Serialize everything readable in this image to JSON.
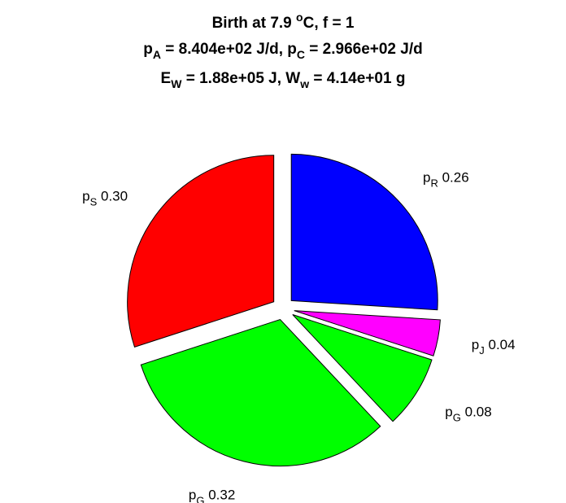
{
  "chart_data": {
    "type": "pie",
    "title_lines": [
      {
        "parts": [
          {
            "t": "Birth at 7.9 "
          },
          {
            "t": "o",
            "s": "sup"
          },
          {
            "t": "C, f = 1"
          }
        ]
      },
      {
        "parts": [
          {
            "t": "p"
          },
          {
            "t": "A",
            "s": "sub"
          },
          {
            "t": " = 8.404e+02 J/d, p"
          },
          {
            "t": "C",
            "s": "sub"
          },
          {
            "t": " = 2.966e+02 J/d"
          }
        ]
      },
      {
        "parts": [
          {
            "t": "E"
          },
          {
            "t": "W",
            "s": "sub"
          },
          {
            "t": " = 1.88e+05 J, W"
          },
          {
            "t": "w",
            "s": "sub"
          },
          {
            "t": " = 4.14e+01 g"
          }
        ]
      }
    ],
    "slices": [
      {
        "name": "p",
        "sub": "R",
        "value_label": "0.26",
        "value": 0.26,
        "color": "#0000ff"
      },
      {
        "name": "p",
        "sub": "J",
        "value_label": "0.04",
        "value": 0.04,
        "color": "#ff00ff"
      },
      {
        "name": "p",
        "sub": "G",
        "value_label": "0.08",
        "value": 0.08,
        "color": "#00ff00"
      },
      {
        "name": "p",
        "sub": "G",
        "value_label": "0.32",
        "value": 0.32,
        "color": "#00ff00"
      },
      {
        "name": "p",
        "sub": "S",
        "value_label": "0.30",
        "value": 0.3,
        "color": "#ff0000"
      }
    ],
    "exploded": true,
    "start_angle": "12 o'clock",
    "direction": "clockwise",
    "edge_color": "#000000",
    "background": "#ffffff"
  }
}
